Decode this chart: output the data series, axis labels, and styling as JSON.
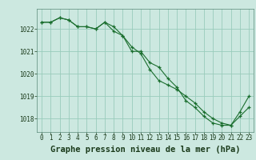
{
  "title": "Graphe pression niveau de la mer (hPa)",
  "background_color": "#cce8e0",
  "grid_color": "#99ccbb",
  "line_color": "#1a6e2e",
  "xlim": [
    -0.5,
    23.5
  ],
  "ylim": [
    1017.4,
    1022.9
  ],
  "yticks": [
    1018,
    1019,
    1020,
    1021,
    1022
  ],
  "xticks": [
    0,
    1,
    2,
    3,
    4,
    5,
    6,
    7,
    8,
    9,
    10,
    11,
    12,
    13,
    14,
    15,
    16,
    17,
    18,
    19,
    20,
    21,
    22,
    23
  ],
  "series1": [
    1022.3,
    1022.3,
    1022.5,
    1022.4,
    1022.1,
    1022.1,
    1022.0,
    1022.3,
    1022.1,
    1021.7,
    1021.0,
    1021.0,
    1020.5,
    1020.3,
    1019.8,
    1019.4,
    1018.8,
    1018.5,
    1018.1,
    1017.8,
    1017.7,
    1017.7,
    1018.3,
    1019.0
  ],
  "series2": [
    1022.3,
    1022.3,
    1022.5,
    1022.4,
    1022.1,
    1022.1,
    1022.0,
    1022.3,
    1021.9,
    1021.7,
    1021.2,
    1020.9,
    1020.2,
    1019.7,
    1019.5,
    1019.3,
    1019.0,
    1018.7,
    1018.3,
    1018.0,
    1017.8,
    1017.7,
    1018.1,
    1018.5
  ],
  "title_fontsize": 7.5,
  "tick_fontsize": 5.5
}
